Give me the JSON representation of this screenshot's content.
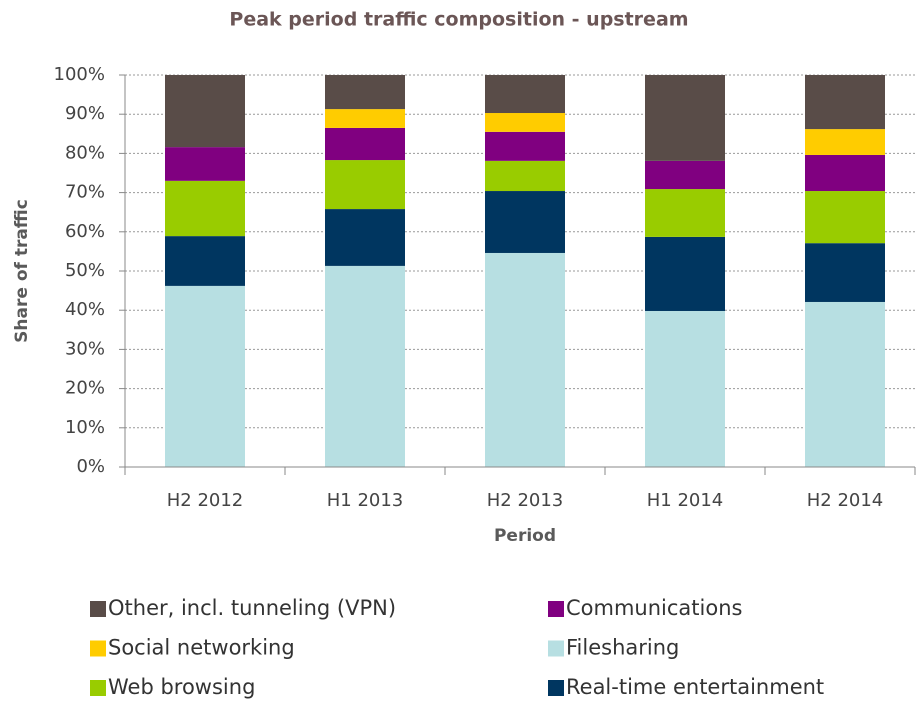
{
  "chart_data": {
    "type": "stacked_bar",
    "title": "Peak period traffic composition - upstream",
    "x_label": "Period",
    "y_label": "Share of traffic",
    "categories": [
      "H2 2012",
      "H1 2013",
      "H2 2013",
      "H1 2014",
      "H2 2014"
    ],
    "series": [
      {
        "name": "Filesharing",
        "color": "#b7dfe2",
        "values": [
          46.2,
          51.3,
          54.6,
          39.8,
          42.1
        ]
      },
      {
        "name": "Real-time entertainment",
        "color": "#003660",
        "values": [
          12.7,
          14.5,
          15.8,
          18.9,
          15.0
        ]
      },
      {
        "name": "Web browsing",
        "color": "#99cc00",
        "values": [
          14.1,
          12.5,
          7.7,
          12.2,
          13.3
        ]
      },
      {
        "name": "Communications",
        "color": "#800080",
        "values": [
          8.6,
          8.2,
          7.4,
          7.2,
          9.2
        ]
      },
      {
        "name": "Social networking",
        "color": "#ffcc00",
        "values": [
          0,
          4.8,
          4.8,
          0,
          6.6
        ]
      },
      {
        "name": "Other, incl. tunneling (VPN)",
        "color": "#594c48",
        "values": [
          18.4,
          8.7,
          9.7,
          21.9,
          13.8
        ]
      }
    ],
    "ylim": [
      0,
      100
    ],
    "yticks": [
      {
        "value": 0,
        "label": "0%"
      },
      {
        "value": 10,
        "label": "10%"
      },
      {
        "value": 20,
        "label": "20%"
      },
      {
        "value": 30,
        "label": "30%"
      },
      {
        "value": 40,
        "label": "40%"
      },
      {
        "value": 50,
        "label": "50%"
      },
      {
        "value": 60,
        "label": "60%"
      },
      {
        "value": 70,
        "label": "70%"
      },
      {
        "value": 80,
        "label": "80%"
      },
      {
        "value": 90,
        "label": "90%"
      },
      {
        "value": 100,
        "label": "100%"
      }
    ],
    "grid": true
  }
}
